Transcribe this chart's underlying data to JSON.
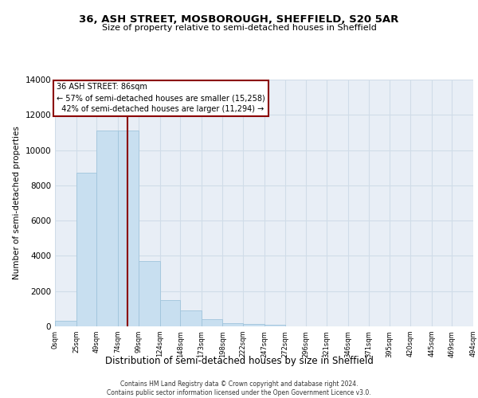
{
  "title1": "36, ASH STREET, MOSBOROUGH, SHEFFIELD, S20 5AR",
  "title2": "Size of property relative to semi-detached houses in Sheffield",
  "xlabel": "Distribution of semi-detached houses by size in Sheffield",
  "ylabel": "Number of semi-detached properties",
  "property_label": "36 ASH STREET: 86sqm",
  "pct_smaller": 57,
  "count_smaller": 15258,
  "pct_larger": 42,
  "count_larger": 11294,
  "bin_labels": [
    "0sqm",
    "25sqm",
    "49sqm",
    "74sqm",
    "99sqm",
    "124sqm",
    "148sqm",
    "173sqm",
    "198sqm",
    "222sqm",
    "247sqm",
    "272sqm",
    "296sqm",
    "321sqm",
    "346sqm",
    "371sqm",
    "395sqm",
    "420sqm",
    "445sqm",
    "469sqm",
    "494sqm"
  ],
  "bin_edges": [
    0,
    25,
    49,
    74,
    99,
    124,
    148,
    173,
    198,
    222,
    247,
    272,
    296,
    321,
    346,
    371,
    395,
    420,
    445,
    469,
    494
  ],
  "bar_heights": [
    300,
    8700,
    11100,
    11100,
    3700,
    1500,
    900,
    400,
    200,
    120,
    100,
    0,
    0,
    0,
    0,
    0,
    0,
    0,
    0,
    0
  ],
  "bar_color": "#c8dff0",
  "bar_edge_color": "#a0c4dc",
  "vline_x": 86,
  "vline_color": "#8b0000",
  "annotation_box_color": "#8b0000",
  "grid_color": "#d0dce8",
  "bg_color": "#e8eef6",
  "ylim": [
    0,
    14000
  ],
  "yticks": [
    0,
    2000,
    4000,
    6000,
    8000,
    10000,
    12000,
    14000
  ],
  "footer1": "Contains HM Land Registry data © Crown copyright and database right 2024.",
  "footer2": "Contains public sector information licensed under the Open Government Licence v3.0."
}
